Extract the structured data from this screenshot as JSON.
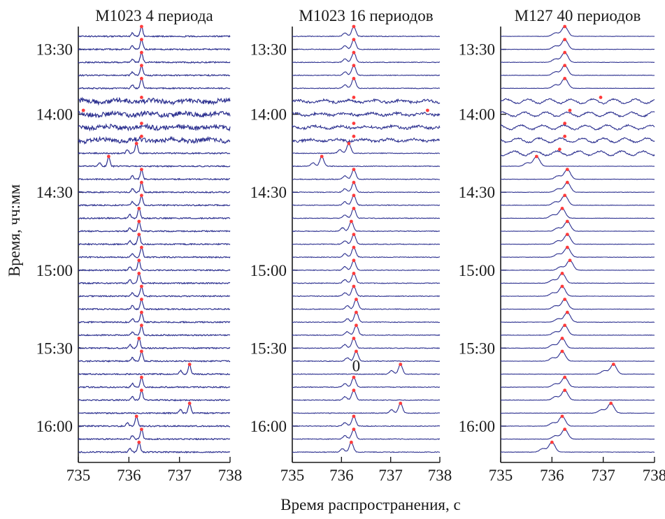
{
  "chart_data": {
    "type": "line",
    "ylabel": "Время, чч:мм",
    "xlabel": "Время распространения, с",
    "xlim": [
      735,
      738
    ],
    "x_ticks": [
      "735",
      "736",
      "737",
      "738"
    ],
    "y_ticks": [
      "13:30",
      "14:00",
      "14:30",
      "15:00",
      "15:30",
      "16:00"
    ],
    "y_tick_trace_index": [
      1,
      6,
      12,
      18,
      24,
      30
    ],
    "trace_count": 33,
    "colors": {
      "trace": "#2b2f8f",
      "peak": "#ff3b3b",
      "axis": "#1a1a1a"
    },
    "panels": [
      {
        "title": "М1023 4 периода",
        "noise": 1.0,
        "peak_width": 0.025,
        "noisy_traces": [
          5,
          6,
          7,
          8
        ],
        "peaks_s": [
          736.25,
          736.25,
          736.25,
          736.25,
          736.25,
          736.25,
          735.1,
          736.25,
          736.25,
          736.15,
          735.6,
          736.25,
          736.25,
          736.25,
          736.2,
          736.2,
          736.2,
          736.25,
          736.2,
          736.2,
          736.25,
          736.25,
          736.25,
          736.25,
          736.2,
          736.25,
          737.2,
          736.25,
          736.25,
          737.2,
          736.15,
          736.25,
          736.2
        ],
        "annotations": []
      },
      {
        "title": "М1023 16 периодов",
        "noise": 0.55,
        "peak_width": 0.04,
        "noisy_traces": [
          5,
          6,
          7,
          8
        ],
        "peaks_s": [
          736.25,
          736.25,
          736.25,
          736.25,
          736.25,
          736.25,
          737.75,
          736.25,
          736.25,
          736.15,
          735.6,
          736.25,
          736.25,
          736.25,
          736.25,
          736.2,
          736.25,
          736.25,
          736.25,
          736.25,
          736.25,
          736.3,
          736.3,
          736.3,
          736.25,
          736.3,
          737.2,
          736.25,
          736.25,
          737.2,
          736.25,
          736.25,
          736.2
        ],
        "annotations": [
          {
            "text": "0",
            "x": 736.3,
            "trace": 26
          }
        ]
      },
      {
        "title": "М127 40 периодов",
        "noise": 0.3,
        "peak_width": 0.06,
        "noisy_traces": [
          5,
          6,
          7,
          8,
          9
        ],
        "peaks_s": [
          736.25,
          736.25,
          736.25,
          736.25,
          736.25,
          736.95,
          736.35,
          736.25,
          736.25,
          736.15,
          735.7,
          736.3,
          736.3,
          736.25,
          736.2,
          736.3,
          736.3,
          736.3,
          736.35,
          736.2,
          736.2,
          736.25,
          736.3,
          736.25,
          736.2,
          736.2,
          737.2,
          736.25,
          736.25,
          737.15,
          736.2,
          736.25,
          736.0
        ],
        "annotations": []
      }
    ]
  }
}
